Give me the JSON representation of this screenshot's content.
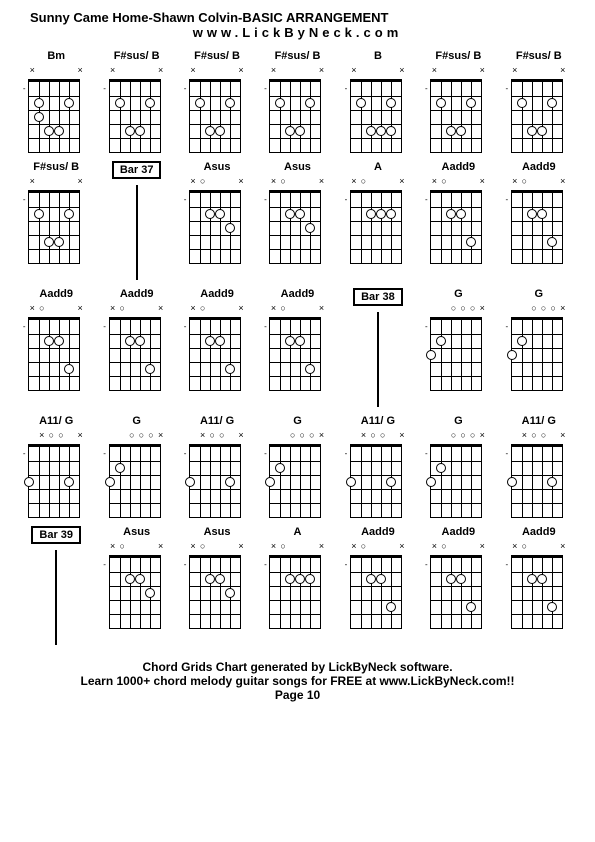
{
  "title": "Sunny Came Home-Shawn Colvin-BASIC ARRANGEMENT",
  "subtitle": "www.LickByNeck.com",
  "footer1": "Chord Grids Chart generated by LickByNeck software.",
  "footer2": "Learn 1000+ chord melody guitar songs for FREE at www.LickByNeck.com!!",
  "page": "Page 10",
  "strings": 6,
  "frets": 5,
  "diagram_width": 50,
  "diagram_height": 70,
  "cells": [
    {
      "type": "chord",
      "name": "Bm",
      "markers": [
        "×",
        "",
        "",
        "",
        "",
        "×"
      ],
      "dots": [
        [
          1,
          1
        ],
        [
          1,
          4
        ],
        [
          2,
          1
        ],
        [
          3,
          2
        ],
        [
          3,
          3
        ]
      ],
      "side": [
        "-"
      ]
    },
    {
      "type": "chord",
      "name": "F#sus/ B",
      "markers": [
        "×",
        "",
        "",
        "",
        "",
        "×"
      ],
      "dots": [
        [
          1,
          1
        ],
        [
          1,
          4
        ],
        [
          3,
          2
        ],
        [
          3,
          3
        ]
      ],
      "side": [
        "-"
      ]
    },
    {
      "type": "chord",
      "name": "F#sus/ B",
      "markers": [
        "×",
        "",
        "",
        "",
        "",
        "×"
      ],
      "dots": [
        [
          1,
          1
        ],
        [
          1,
          4
        ],
        [
          3,
          2
        ],
        [
          3,
          3
        ]
      ],
      "side": [
        "-"
      ]
    },
    {
      "type": "chord",
      "name": "F#sus/ B",
      "markers": [
        "×",
        "",
        "",
        "",
        "",
        "×"
      ],
      "dots": [
        [
          1,
          1
        ],
        [
          1,
          4
        ],
        [
          3,
          2
        ],
        [
          3,
          3
        ]
      ],
      "side": [
        "-"
      ]
    },
    {
      "type": "chord",
      "name": "B",
      "markers": [
        "×",
        "",
        "",
        "",
        "",
        "×"
      ],
      "dots": [
        [
          1,
          1
        ],
        [
          1,
          4
        ],
        [
          3,
          2
        ],
        [
          3,
          3
        ],
        [
          3,
          4
        ]
      ],
      "side": [
        "-"
      ]
    },
    {
      "type": "chord",
      "name": "F#sus/ B",
      "markers": [
        "×",
        "",
        "",
        "",
        "",
        "×"
      ],
      "dots": [
        [
          1,
          1
        ],
        [
          1,
          4
        ],
        [
          3,
          2
        ],
        [
          3,
          3
        ]
      ],
      "side": [
        "-"
      ]
    },
    {
      "type": "chord",
      "name": "F#sus/ B",
      "markers": [
        "×",
        "",
        "",
        "",
        "",
        "×"
      ],
      "dots": [
        [
          1,
          1
        ],
        [
          1,
          4
        ],
        [
          3,
          2
        ],
        [
          3,
          3
        ]
      ],
      "side": [
        "-"
      ]
    },
    {
      "type": "chord",
      "name": "F#sus/ B",
      "markers": [
        "×",
        "",
        "",
        "",
        "",
        "×"
      ],
      "dots": [
        [
          1,
          1
        ],
        [
          1,
          4
        ],
        [
          3,
          2
        ],
        [
          3,
          3
        ]
      ],
      "side": [
        "-"
      ]
    },
    {
      "type": "bar",
      "name": "Bar 37"
    },
    {
      "type": "chord",
      "name": "Asus",
      "markers": [
        "×",
        "○",
        "",
        "",
        "",
        "×"
      ],
      "dots": [
        [
          1,
          2
        ],
        [
          1,
          3
        ],
        [
          2,
          4
        ]
      ],
      "side": [
        "-"
      ]
    },
    {
      "type": "chord",
      "name": "Asus",
      "markers": [
        "×",
        "○",
        "",
        "",
        "",
        "×"
      ],
      "dots": [
        [
          1,
          2
        ],
        [
          1,
          3
        ],
        [
          2,
          4
        ]
      ],
      "side": [
        "-"
      ]
    },
    {
      "type": "chord",
      "name": "A",
      "markers": [
        "×",
        "○",
        "",
        "",
        "",
        "×"
      ],
      "dots": [
        [
          1,
          2
        ],
        [
          1,
          3
        ],
        [
          1,
          4
        ]
      ],
      "side": [
        "-"
      ]
    },
    {
      "type": "chord",
      "name": "Aadd9",
      "markers": [
        "×",
        "○",
        "",
        "",
        "",
        "×"
      ],
      "dots": [
        [
          1,
          2
        ],
        [
          1,
          3
        ],
        [
          3,
          4
        ]
      ],
      "side": [
        "-"
      ]
    },
    {
      "type": "chord",
      "name": "Aadd9",
      "markers": [
        "×",
        "○",
        "",
        "",
        "",
        "×"
      ],
      "dots": [
        [
          1,
          2
        ],
        [
          1,
          3
        ],
        [
          3,
          4
        ]
      ],
      "side": [
        "-"
      ]
    },
    {
      "type": "chord",
      "name": "Aadd9",
      "markers": [
        "×",
        "○",
        "",
        "",
        "",
        "×"
      ],
      "dots": [
        [
          1,
          2
        ],
        [
          1,
          3
        ],
        [
          3,
          4
        ]
      ],
      "side": [
        "-"
      ]
    },
    {
      "type": "chord",
      "name": "Aadd9",
      "markers": [
        "×",
        "○",
        "",
        "",
        "",
        "×"
      ],
      "dots": [
        [
          1,
          2
        ],
        [
          1,
          3
        ],
        [
          3,
          4
        ]
      ],
      "side": [
        "-"
      ]
    },
    {
      "type": "chord",
      "name": "Aadd9",
      "markers": [
        "×",
        "○",
        "",
        "",
        "",
        "×"
      ],
      "dots": [
        [
          1,
          2
        ],
        [
          1,
          3
        ],
        [
          3,
          4
        ]
      ],
      "side": [
        "-"
      ]
    },
    {
      "type": "chord",
      "name": "Aadd9",
      "markers": [
        "×",
        "○",
        "",
        "",
        "",
        "×"
      ],
      "dots": [
        [
          1,
          2
        ],
        [
          1,
          3
        ],
        [
          3,
          4
        ]
      ],
      "side": [
        "-"
      ]
    },
    {
      "type": "bar",
      "name": "Bar 38"
    },
    {
      "type": "chord",
      "name": "G",
      "markers": [
        "",
        "",
        "○",
        "○",
        "○",
        "×"
      ],
      "dots": [
        [
          1,
          1
        ],
        [
          2,
          0
        ]
      ],
      "side": [
        "-"
      ]
    },
    {
      "type": "chord",
      "name": "G",
      "markers": [
        "",
        "",
        "○",
        "○",
        "○",
        "×"
      ],
      "dots": [
        [
          1,
          1
        ],
        [
          2,
          0
        ]
      ],
      "side": [
        "-"
      ]
    },
    {
      "type": "chord",
      "name": "A11/ G",
      "markers": [
        "",
        "×",
        "○",
        "○",
        "",
        "×"
      ],
      "dots": [
        [
          2,
          0
        ],
        [
          2,
          4
        ]
      ],
      "side": [
        "-"
      ]
    },
    {
      "type": "chord",
      "name": "G",
      "markers": [
        "",
        "",
        "○",
        "○",
        "○",
        "×"
      ],
      "dots": [
        [
          1,
          1
        ],
        [
          2,
          0
        ]
      ],
      "side": [
        "-"
      ]
    },
    {
      "type": "chord",
      "name": "A11/ G",
      "markers": [
        "",
        "×",
        "○",
        "○",
        "",
        "×"
      ],
      "dots": [
        [
          2,
          0
        ],
        [
          2,
          4
        ]
      ],
      "side": [
        "-"
      ]
    },
    {
      "type": "chord",
      "name": "G",
      "markers": [
        "",
        "",
        "○",
        "○",
        "○",
        "×"
      ],
      "dots": [
        [
          1,
          1
        ],
        [
          2,
          0
        ]
      ],
      "side": [
        "-"
      ]
    },
    {
      "type": "chord",
      "name": "A11/ G",
      "markers": [
        "",
        "×",
        "○",
        "○",
        "",
        "×"
      ],
      "dots": [
        [
          2,
          0
        ],
        [
          2,
          4
        ]
      ],
      "side": [
        "-"
      ]
    },
    {
      "type": "chord",
      "name": "G",
      "markers": [
        "",
        "",
        "○",
        "○",
        "○",
        "×"
      ],
      "dots": [
        [
          1,
          1
        ],
        [
          2,
          0
        ]
      ],
      "side": [
        "-"
      ]
    },
    {
      "type": "chord",
      "name": "A11/ G",
      "markers": [
        "",
        "×",
        "○",
        "○",
        "",
        "×"
      ],
      "dots": [
        [
          2,
          0
        ],
        [
          2,
          4
        ]
      ],
      "side": [
        "-"
      ]
    },
    {
      "type": "bar",
      "name": "Bar 39"
    },
    {
      "type": "chord",
      "name": "Asus",
      "markers": [
        "×",
        "○",
        "",
        "",
        "",
        "×"
      ],
      "dots": [
        [
          1,
          2
        ],
        [
          1,
          3
        ],
        [
          2,
          4
        ]
      ],
      "side": [
        "-"
      ]
    },
    {
      "type": "chord",
      "name": "Asus",
      "markers": [
        "×",
        "○",
        "",
        "",
        "",
        "×"
      ],
      "dots": [
        [
          1,
          2
        ],
        [
          1,
          3
        ],
        [
          2,
          4
        ]
      ],
      "side": [
        "-"
      ]
    },
    {
      "type": "chord",
      "name": "A",
      "markers": [
        "×",
        "○",
        "",
        "",
        "",
        "×"
      ],
      "dots": [
        [
          1,
          2
        ],
        [
          1,
          3
        ],
        [
          1,
          4
        ]
      ],
      "side": [
        "-"
      ]
    },
    {
      "type": "chord",
      "name": "Aadd9",
      "markers": [
        "×",
        "○",
        "",
        "",
        "",
        "×"
      ],
      "dots": [
        [
          1,
          2
        ],
        [
          1,
          3
        ],
        [
          3,
          4
        ]
      ],
      "side": [
        "-"
      ]
    },
    {
      "type": "chord",
      "name": "Aadd9",
      "markers": [
        "×",
        "○",
        "",
        "",
        "",
        "×"
      ],
      "dots": [
        [
          1,
          2
        ],
        [
          1,
          3
        ],
        [
          3,
          4
        ]
      ],
      "side": [
        "-"
      ]
    },
    {
      "type": "chord",
      "name": "Aadd9",
      "markers": [
        "×",
        "○",
        "",
        "",
        "",
        "×"
      ],
      "dots": [
        [
          1,
          2
        ],
        [
          1,
          3
        ],
        [
          3,
          4
        ]
      ],
      "side": [
        "-"
      ]
    }
  ]
}
